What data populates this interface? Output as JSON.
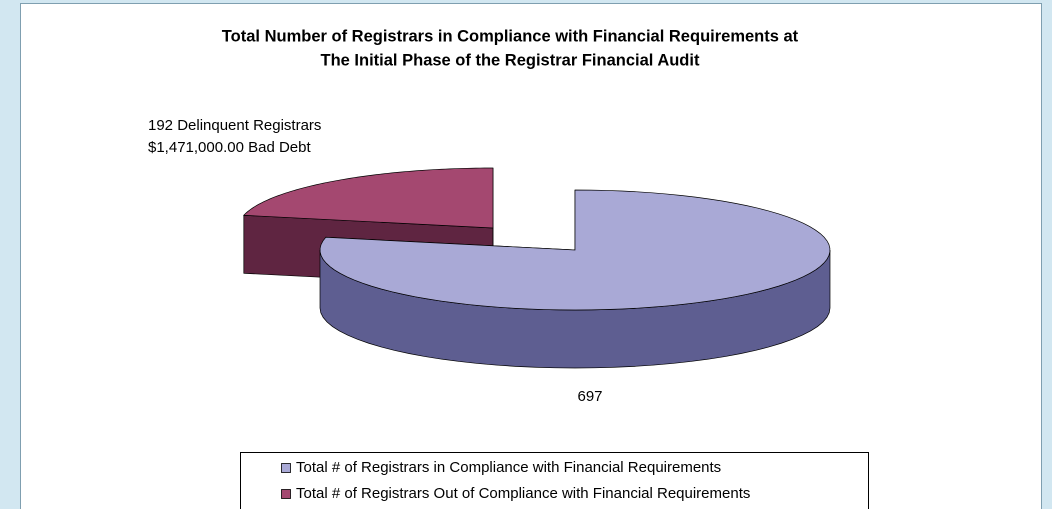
{
  "chart_data": {
    "type": "pie3d",
    "title": [
      "Total Number of Registrars in Compliance with Financial Requirements at",
      "The Initial Phase of the Registrar Financial Audit"
    ],
    "categories": [
      "Total # of Registrars in Compliance with Financial Requirements",
      "Total # of Registrars Out of Compliance with Financial Requirements"
    ],
    "values": [
      697,
      192
    ],
    "value_labels": [
      "697",
      "192 Delinquent Registrars"
    ],
    "annotations": [
      "$1,471,000.00 Bad Debt"
    ],
    "colors": [
      "#a9a9d6",
      "#a44870"
    ],
    "side_colors": [
      "#5e5e91",
      "#5f2541"
    ],
    "legend": "bottom"
  }
}
